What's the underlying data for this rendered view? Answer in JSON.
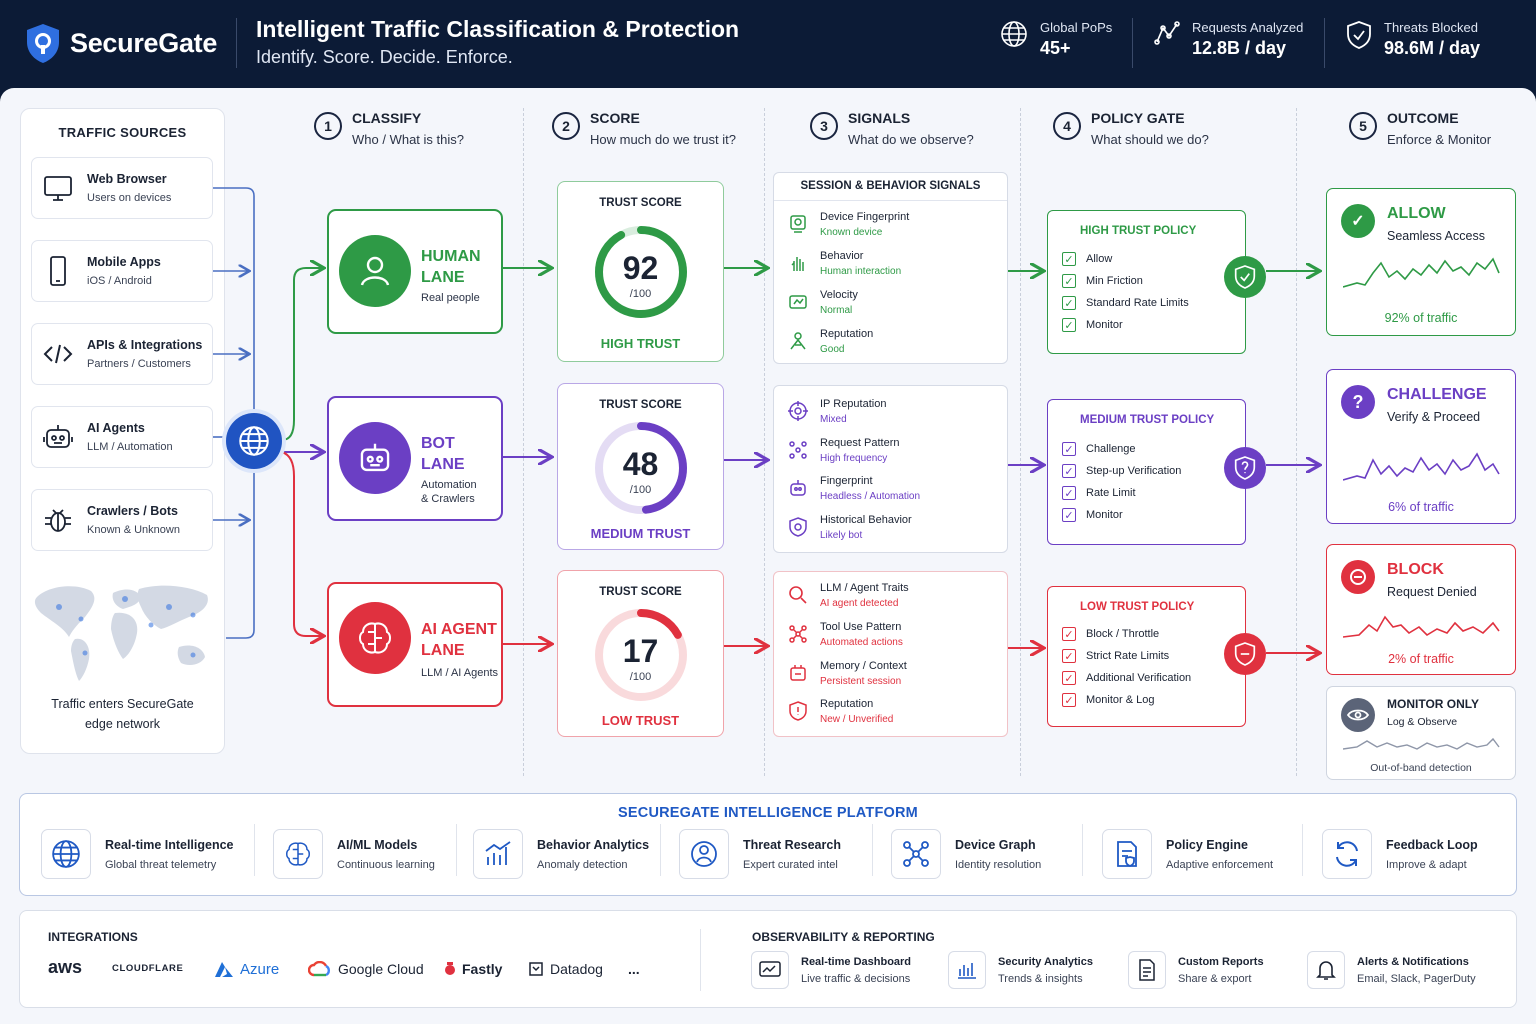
{
  "header": {
    "brand": "SecureGate",
    "title": "Intelligent Traffic Classification & Protection",
    "subtitle": "Identify. Score. Decide. Enforce.",
    "stats": [
      {
        "label": "Global PoPs",
        "value": "45+",
        "icon": "globe-icon"
      },
      {
        "label": "Requests Analyzed",
        "value": "12.8B / day",
        "icon": "network-icon"
      },
      {
        "label": "Threats Blocked",
        "value": "98.6M / day",
        "icon": "shield-check-icon"
      }
    ]
  },
  "sources": {
    "title": "TRAFFIC SOURCES",
    "items": [
      {
        "name": "Web Browser",
        "desc": "Users on devices",
        "icon": "monitor-icon"
      },
      {
        "name": "Mobile Apps",
        "desc": "iOS / Android",
        "icon": "phone-icon"
      },
      {
        "name": "APIs & Integrations",
        "desc": "Partners / Customers",
        "icon": "code-icon"
      },
      {
        "name": "AI Agents",
        "desc": "LLM / Automation",
        "icon": "robot-icon"
      },
      {
        "name": "Crawlers / Bots",
        "desc": "Known & Unknown",
        "icon": "bug-icon"
      }
    ],
    "map_caption_1": "Traffic enters SecureGate",
    "map_caption_2": "edge network"
  },
  "steps": [
    {
      "num": "1",
      "title": "CLASSIFY",
      "sub": "Who / What is this?"
    },
    {
      "num": "2",
      "title": "SCORE",
      "sub": "How much do we trust it?"
    },
    {
      "num": "3",
      "title": "SIGNALS",
      "sub": "What do we observe?"
    },
    {
      "num": "4",
      "title": "POLICY GATE",
      "sub": "What should we do?"
    },
    {
      "num": "5",
      "title": "OUTCOME",
      "sub": "Enforce & Monitor"
    }
  ],
  "lanes": [
    {
      "name_1": "HUMAN",
      "name_2": "LANE",
      "desc_1": "Real people",
      "desc_2": "",
      "color": "#2e9a46"
    },
    {
      "name_1": "BOT",
      "name_2": "LANE",
      "desc_1": "Automation",
      "desc_2": "& Crawlers",
      "color": "#6b3fc4"
    },
    {
      "name_1": "AI AGENT",
      "name_2": "LANE",
      "desc_1": "LLM / AI Agents",
      "desc_2": "",
      "color": "#e0313f"
    }
  ],
  "scores": [
    {
      "label": "TRUST SCORE",
      "value": 92,
      "max": "/100",
      "level": "HIGH TRUST",
      "color": "#2e9a46"
    },
    {
      "label": "TRUST SCORE",
      "value": 48,
      "max": "/100",
      "level": "MEDIUM TRUST",
      "color": "#6b3fc4"
    },
    {
      "label": "TRUST SCORE",
      "value": 17,
      "max": "/100",
      "level": "LOW TRUST",
      "color": "#e0313f"
    }
  ],
  "signals": {
    "header": "SESSION & BEHAVIOR SIGNALS",
    "groups": [
      [
        {
          "a": "Device Fingerprint",
          "b": "Known device"
        },
        {
          "a": "Behavior",
          "b": "Human interaction"
        },
        {
          "a": "Velocity",
          "b": "Normal"
        },
        {
          "a": "Reputation",
          "b": "Good"
        }
      ],
      [
        {
          "a": "IP Reputation",
          "b": "Mixed"
        },
        {
          "a": "Request Pattern",
          "b": "High frequency"
        },
        {
          "a": "Fingerprint",
          "b": "Headless / Automation"
        },
        {
          "a": "Historical Behavior",
          "b": "Likely bot"
        }
      ],
      [
        {
          "a": "LLM / Agent Traits",
          "b": "AI agent detected"
        },
        {
          "a": "Tool Use Pattern",
          "b": "Automated actions"
        },
        {
          "a": "Memory / Context",
          "b": "Persistent session"
        },
        {
          "a": "Reputation",
          "b": "New / Unverified"
        }
      ]
    ]
  },
  "policies": [
    {
      "title": "HIGH TRUST POLICY",
      "items": [
        "Allow",
        "Min Friction",
        "Standard Rate Limits",
        "Monitor"
      ]
    },
    {
      "title": "MEDIUM TRUST POLICY",
      "items": [
        "Challenge",
        "Step-up Verification",
        "Rate Limit",
        "Monitor"
      ]
    },
    {
      "title": "LOW TRUST POLICY",
      "items": [
        "Block / Throttle",
        "Strict Rate Limits",
        "Additional Verification",
        "Monitor & Log"
      ]
    }
  ],
  "outcomes": [
    {
      "title": "ALLOW",
      "sub": "Seamless Access",
      "pct": "92% of traffic",
      "color": "#2e9a46"
    },
    {
      "title": "CHALLENGE",
      "sub": "Verify & Proceed",
      "pct": "6% of traffic",
      "color": "#6b3fc4"
    },
    {
      "title": "BLOCK",
      "sub": "Request Denied",
      "pct": "2% of traffic",
      "color": "#e0313f"
    },
    {
      "title": "MONITOR ONLY",
      "sub": "Log & Observe",
      "pct": "Out-of-band detection",
      "color": "#5b6478"
    }
  ],
  "platform": {
    "title": "SECUREGATE INTELLIGENCE PLATFORM",
    "items": [
      {
        "a": "Real-time Intelligence",
        "b": "Global threat telemetry"
      },
      {
        "a": "AI/ML Models",
        "b": "Continuous learning"
      },
      {
        "a": "Behavior Analytics",
        "b": "Anomaly detection"
      },
      {
        "a": "Threat Research",
        "b": "Expert curated intel"
      },
      {
        "a": "Device Graph",
        "b": "Identity resolution"
      },
      {
        "a": "Policy Engine",
        "b": "Adaptive enforcement"
      },
      {
        "a": "Feedback Loop",
        "b": "Improve & adapt"
      }
    ]
  },
  "integrations": {
    "title": "INTEGRATIONS",
    "items": [
      "aws",
      "CLOUDFLARE",
      "Azure",
      "Google Cloud",
      "Fastly",
      "Datadog",
      "..."
    ]
  },
  "observability": {
    "title": "OBSERVABILITY & REPORTING",
    "items": [
      {
        "a": "Real-time Dashboard",
        "b": "Live traffic & decisions"
      },
      {
        "a": "Security Analytics",
        "b": "Trends & insights"
      },
      {
        "a": "Custom Reports",
        "b": "Share & export"
      },
      {
        "a": "Alerts & Notifications",
        "b": "Email, Slack, PagerDuty"
      }
    ]
  }
}
